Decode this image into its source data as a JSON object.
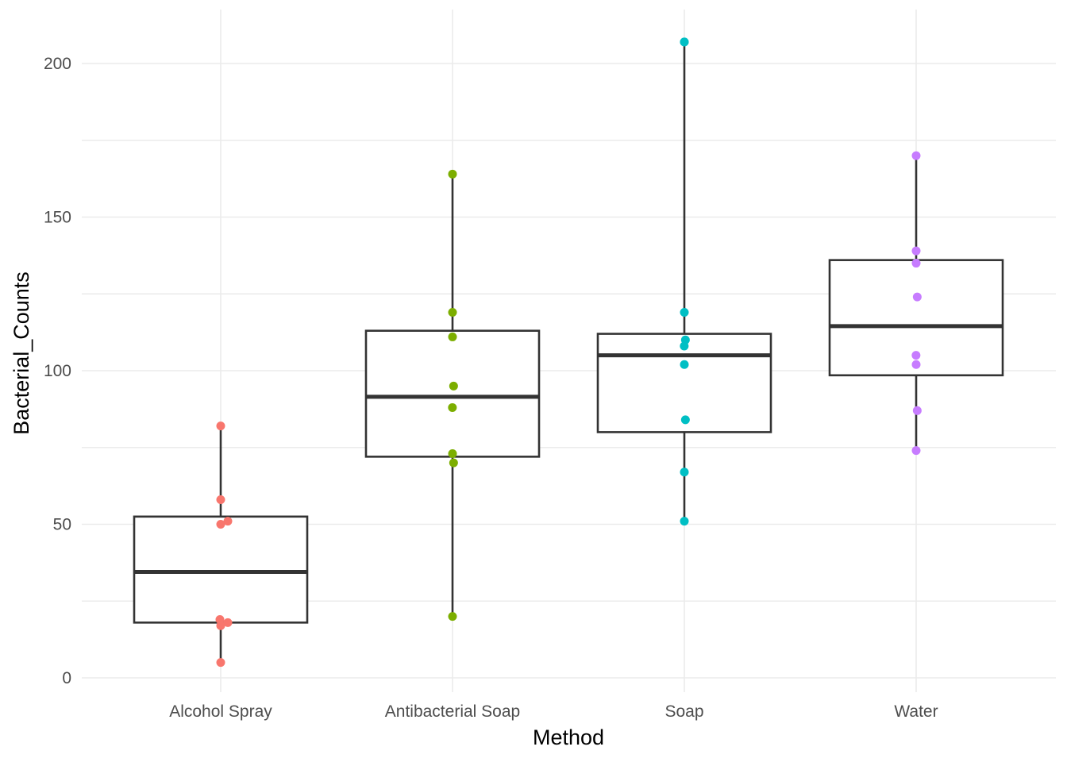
{
  "chart_data": {
    "type": "box",
    "title": "",
    "xlabel": "Method",
    "ylabel": "Bacterial_Counts",
    "categories": [
      "Alcohol Spray",
      "Antibacterial Soap",
      "Soap",
      "Water"
    ],
    "ylim": [
      -12,
      217
    ],
    "yticks": [
      0,
      50,
      100,
      150,
      200
    ],
    "grid": true,
    "legend": "none",
    "colors": [
      "#F8766D",
      "#7CAE00",
      "#00BFC4",
      "#C77CFF"
    ],
    "boxes": [
      {
        "category": "Alcohol Spray",
        "lower_whisker": 5,
        "q1": 18,
        "median": 34.5,
        "q3": 52.5,
        "upper_whisker": 82
      },
      {
        "category": "Antibacterial Soap",
        "lower_whisker": 20,
        "q1": 72,
        "median": 91.5,
        "q3": 113,
        "upper_whisker": 164
      },
      {
        "category": "Soap",
        "lower_whisker": 51,
        "q1": 80,
        "median": 105,
        "q3": 112,
        "upper_whisker": 207
      },
      {
        "category": "Water",
        "lower_whisker": 74,
        "q1": 98.5,
        "median": 114.5,
        "q3": 136,
        "upper_whisker": 170
      }
    ],
    "points": [
      {
        "category": "Alcohol Spray",
        "values": [
          82,
          58,
          50,
          51,
          19,
          17,
          18,
          5
        ]
      },
      {
        "category": "Antibacterial Soap",
        "values": [
          164,
          119,
          111,
          95,
          88,
          73,
          70,
          20
        ]
      },
      {
        "category": "Soap",
        "values": [
          207,
          207,
          119,
          110,
          108,
          102,
          84,
          67,
          51
        ]
      },
      {
        "category": "Water",
        "values": [
          170,
          139,
          135,
          124,
          105,
          102,
          87,
          74
        ]
      }
    ]
  }
}
